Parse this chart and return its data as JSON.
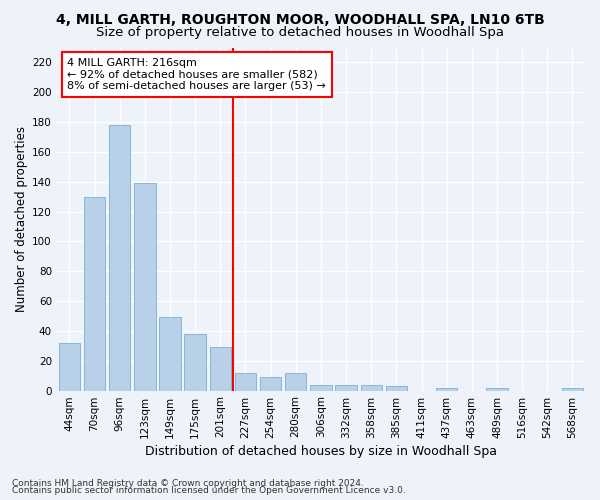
{
  "title1": "4, MILL GARTH, ROUGHTON MOOR, WOODHALL SPA, LN10 6TB",
  "title2": "Size of property relative to detached houses in Woodhall Spa",
  "xlabel": "Distribution of detached houses by size in Woodhall Spa",
  "ylabel": "Number of detached properties",
  "categories": [
    "44sqm",
    "70sqm",
    "96sqm",
    "123sqm",
    "149sqm",
    "175sqm",
    "201sqm",
    "227sqm",
    "254sqm",
    "280sqm",
    "306sqm",
    "332sqm",
    "358sqm",
    "385sqm",
    "411sqm",
    "437sqm",
    "463sqm",
    "489sqm",
    "516sqm",
    "542sqm",
    "568sqm"
  ],
  "values": [
    32,
    130,
    178,
    139,
    49,
    38,
    29,
    12,
    9,
    12,
    4,
    4,
    4,
    3,
    0,
    2,
    0,
    2,
    0,
    0,
    2
  ],
  "bar_color": "#b8d0e8",
  "bar_edgecolor": "#7aafd4",
  "vline_color": "red",
  "vline_x": 6.5,
  "annotation_text": "4 MILL GARTH: 216sqm\n← 92% of detached houses are smaller (582)\n8% of semi-detached houses are larger (53) →",
  "annotation_box_color": "white",
  "annotation_box_edgecolor": "red",
  "ylim": [
    0,
    230
  ],
  "yticks": [
    0,
    20,
    40,
    60,
    80,
    100,
    120,
    140,
    160,
    180,
    200,
    220
  ],
  "footnote1": "Contains HM Land Registry data © Crown copyright and database right 2024.",
  "footnote2": "Contains public sector information licensed under the Open Government Licence v3.0.",
  "background_color": "#eef2f9",
  "grid_color": "#ffffff",
  "title1_fontsize": 10,
  "title2_fontsize": 9.5,
  "xlabel_fontsize": 9,
  "ylabel_fontsize": 8.5,
  "tick_fontsize": 7.5,
  "annotation_fontsize": 8,
  "footnote_fontsize": 6.5
}
